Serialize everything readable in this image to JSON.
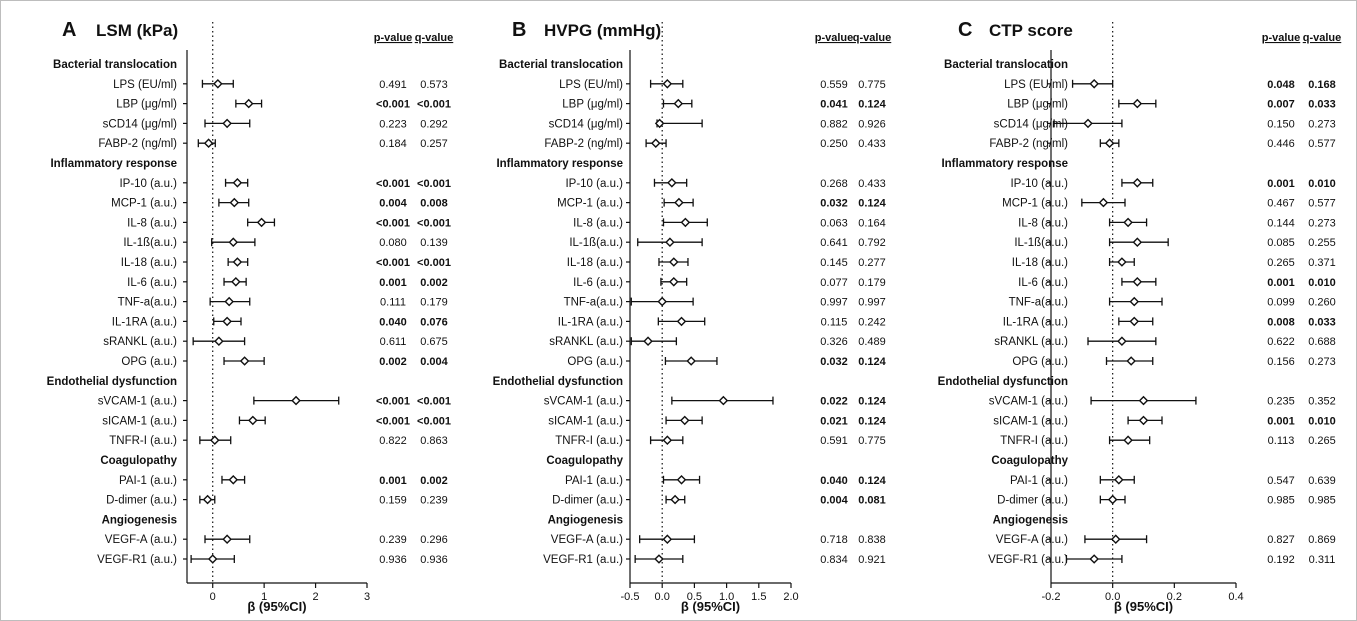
{
  "figure": {
    "rows": [
      {
        "kind": "category",
        "label": "Bacterial translocation"
      },
      {
        "kind": "marker",
        "label": "LPS (EU/ml)"
      },
      {
        "kind": "marker",
        "label": "LBP (μg/ml)"
      },
      {
        "kind": "marker",
        "label": "sCD14 (μg/ml)"
      },
      {
        "kind": "marker",
        "label": "FABP-2 (ng/ml)"
      },
      {
        "kind": "category",
        "label": "Inflammatory response"
      },
      {
        "kind": "marker",
        "label": "IP-10 (a.u.)"
      },
      {
        "kind": "marker",
        "label": "MCP-1 (a.u.)"
      },
      {
        "kind": "marker",
        "label": "IL-8 (a.u.)"
      },
      {
        "kind": "marker",
        "label": "IL-1ß(a.u.)"
      },
      {
        "kind": "marker",
        "label": "IL-18 (a.u.)"
      },
      {
        "kind": "marker",
        "label": "IL-6 (a.u.)"
      },
      {
        "kind": "marker",
        "label": "TNF-a(a.u.)"
      },
      {
        "kind": "marker",
        "label": "IL-1RA (a.u.)"
      },
      {
        "kind": "marker",
        "label": "sRANKL (a.u.)"
      },
      {
        "kind": "marker",
        "label": "OPG (a.u.)"
      },
      {
        "kind": "category",
        "label": "Endothelial dysfunction"
      },
      {
        "kind": "marker",
        "label": "sVCAM-1 (a.u.)"
      },
      {
        "kind": "marker",
        "label": "sICAM-1 (a.u.)"
      },
      {
        "kind": "marker",
        "label": "TNFR-I (a.u.)"
      },
      {
        "kind": "category",
        "label": "Coagulopathy"
      },
      {
        "kind": "marker",
        "label": "PAI-1 (a.u.)"
      },
      {
        "kind": "marker",
        "label": "D-dimer (a.u.)"
      },
      {
        "kind": "category",
        "label": "Angiogenesis"
      },
      {
        "kind": "marker",
        "label": "VEGF-A (a.u.)"
      },
      {
        "kind": "marker",
        "label": "VEGF-R1 (a.u.)"
      }
    ],
    "p_header": "p-value",
    "q_header": "q-value",
    "xlabel": "β (95%CI)"
  },
  "chart_data": [
    {
      "type": "forest",
      "letter": "A",
      "title": "LSM (kPa)",
      "xlim": [
        -0.5,
        3
      ],
      "xticks": [
        "0",
        "1",
        "2",
        "3"
      ],
      "reference_line": 0,
      "series": [
        {
          "beta": 0.1,
          "lo": -0.2,
          "hi": 0.4,
          "p": "0.491",
          "q": "0.573",
          "sig": false
        },
        {
          "beta": 0.7,
          "lo": 0.45,
          "hi": 0.95,
          "p": "<0.001",
          "q": "<0.001",
          "sig": true
        },
        {
          "beta": 0.28,
          "lo": -0.15,
          "hi": 0.72,
          "p": "0.223",
          "q": "0.292",
          "sig": false
        },
        {
          "beta": -0.08,
          "lo": -0.28,
          "hi": 0.05,
          "p": "0.184",
          "q": "0.257",
          "sig": false
        },
        {
          "beta": 0.48,
          "lo": 0.25,
          "hi": 0.68,
          "p": "<0.001",
          "q": "<0.001",
          "sig": true
        },
        {
          "beta": 0.42,
          "lo": 0.12,
          "hi": 0.7,
          "p": "0.004",
          "q": "0.008",
          "sig": true
        },
        {
          "beta": 0.95,
          "lo": 0.68,
          "hi": 1.2,
          "p": "<0.001",
          "q": "<0.001",
          "sig": true
        },
        {
          "beta": 0.4,
          "lo": -0.02,
          "hi": 0.82,
          "p": "0.080",
          "q": "0.139",
          "sig": false
        },
        {
          "beta": 0.48,
          "lo": 0.3,
          "hi": 0.68,
          "p": "<0.001",
          "q": "<0.001",
          "sig": true
        },
        {
          "beta": 0.45,
          "lo": 0.22,
          "hi": 0.65,
          "p": "0.001",
          "q": "0.002",
          "sig": true
        },
        {
          "beta": 0.32,
          "lo": -0.05,
          "hi": 0.72,
          "p": "0.111",
          "q": "0.179",
          "sig": false
        },
        {
          "beta": 0.28,
          "lo": 0.02,
          "hi": 0.55,
          "p": "0.040",
          "q": "0.076",
          "sig": true
        },
        {
          "beta": 0.12,
          "lo": -0.38,
          "hi": 0.62,
          "p": "0.611",
          "q": "0.675",
          "sig": false
        },
        {
          "beta": 0.62,
          "lo": 0.22,
          "hi": 1.0,
          "p": "0.002",
          "q": "0.004",
          "sig": true
        },
        {
          "beta": 1.62,
          "lo": 0.8,
          "hi": 2.45,
          "p": "<0.001",
          "q": "<0.001",
          "sig": true
        },
        {
          "beta": 0.78,
          "lo": 0.52,
          "hi": 1.02,
          "p": "<0.001",
          "q": "<0.001",
          "sig": true
        },
        {
          "beta": 0.04,
          "lo": -0.25,
          "hi": 0.35,
          "p": "0.822",
          "q": "0.863",
          "sig": false
        },
        {
          "beta": 0.4,
          "lo": 0.18,
          "hi": 0.62,
          "p": "0.001",
          "q": "0.002",
          "sig": true
        },
        {
          "beta": -0.1,
          "lo": -0.25,
          "hi": 0.04,
          "p": "0.159",
          "q": "0.239",
          "sig": false
        },
        {
          "beta": 0.28,
          "lo": -0.15,
          "hi": 0.72,
          "p": "0.239",
          "q": "0.296",
          "sig": false
        },
        {
          "beta": 0.0,
          "lo": -0.42,
          "hi": 0.42,
          "p": "0.936",
          "q": "0.936",
          "sig": false
        }
      ]
    },
    {
      "type": "forest",
      "letter": "B",
      "title": "HVPG (mmHg)",
      "xlim": [
        -0.5,
        2.0
      ],
      "xticks": [
        "-0.5",
        "0.0",
        "0.5",
        "1.0",
        "1.5",
        "2.0"
      ],
      "reference_line": 0,
      "series": [
        {
          "beta": 0.08,
          "lo": -0.18,
          "hi": 0.32,
          "p": "0.559",
          "q": "0.775",
          "sig": false
        },
        {
          "beta": 0.25,
          "lo": 0.02,
          "hi": 0.46,
          "p": "0.041",
          "q": "0.124",
          "sig": true
        },
        {
          "beta": -0.04,
          "lo": -0.08,
          "hi": 0.62,
          "p": "0.882",
          "q": "0.926",
          "sig": false
        },
        {
          "beta": -0.1,
          "lo": -0.25,
          "hi": 0.06,
          "p": "0.250",
          "q": "0.433",
          "sig": false
        },
        {
          "beta": 0.15,
          "lo": -0.12,
          "hi": 0.38,
          "p": "0.268",
          "q": "0.433",
          "sig": false
        },
        {
          "beta": 0.26,
          "lo": 0.03,
          "hi": 0.48,
          "p": "0.032",
          "q": "0.124",
          "sig": true
        },
        {
          "beta": 0.36,
          "lo": 0.02,
          "hi": 0.7,
          "p": "0.063",
          "q": "0.164",
          "sig": false
        },
        {
          "beta": 0.12,
          "lo": -0.38,
          "hi": 0.62,
          "p": "0.641",
          "q": "0.792",
          "sig": false
        },
        {
          "beta": 0.18,
          "lo": -0.05,
          "hi": 0.4,
          "p": "0.145",
          "q": "0.277",
          "sig": false
        },
        {
          "beta": 0.18,
          "lo": -0.02,
          "hi": 0.38,
          "p": "0.077",
          "q": "0.179",
          "sig": false
        },
        {
          "beta": 0.0,
          "lo": -0.48,
          "hi": 0.48,
          "p": "0.997",
          "q": "0.997",
          "sig": false
        },
        {
          "beta": 0.3,
          "lo": -0.06,
          "hi": 0.66,
          "p": "0.115",
          "q": "0.242",
          "sig": false
        },
        {
          "beta": -0.22,
          "lo": -0.48,
          "hi": 0.22,
          "p": "0.326",
          "q": "0.489",
          "sig": false
        },
        {
          "beta": 0.45,
          "lo": 0.05,
          "hi": 0.85,
          "p": "0.032",
          "q": "0.124",
          "sig": true
        },
        {
          "beta": 0.95,
          "lo": 0.15,
          "hi": 1.72,
          "p": "0.022",
          "q": "0.124",
          "sig": true
        },
        {
          "beta": 0.35,
          "lo": 0.06,
          "hi": 0.62,
          "p": "0.021",
          "q": "0.124",
          "sig": true
        },
        {
          "beta": 0.08,
          "lo": -0.18,
          "hi": 0.32,
          "p": "0.591",
          "q": "0.775",
          "sig": false
        },
        {
          "beta": 0.3,
          "lo": 0.02,
          "hi": 0.58,
          "p": "0.040",
          "q": "0.124",
          "sig": true
        },
        {
          "beta": 0.2,
          "lo": 0.06,
          "hi": 0.35,
          "p": "0.004",
          "q": "0.081",
          "sig": true
        },
        {
          "beta": 0.08,
          "lo": -0.35,
          "hi": 0.5,
          "p": "0.718",
          "q": "0.838",
          "sig": false
        },
        {
          "beta": -0.05,
          "lo": -0.42,
          "hi": 0.32,
          "p": "0.834",
          "q": "0.921",
          "sig": false
        }
      ]
    },
    {
      "type": "forest",
      "letter": "C",
      "title": "CTP score",
      "xlim": [
        -0.2,
        0.4
      ],
      "xticks": [
        "-0.2",
        "0.0",
        "0.2",
        "0.4"
      ],
      "reference_line": 0,
      "series": [
        {
          "beta": -0.06,
          "lo": -0.13,
          "hi": 0.0,
          "p": "0.048",
          "q": "0.168",
          "sig": true
        },
        {
          "beta": 0.08,
          "lo": 0.02,
          "hi": 0.14,
          "p": "0.007",
          "q": "0.033",
          "sig": true
        },
        {
          "beta": -0.08,
          "lo": -0.19,
          "hi": 0.03,
          "p": "0.150",
          "q": "0.273",
          "sig": false
        },
        {
          "beta": -0.01,
          "lo": -0.04,
          "hi": 0.02,
          "p": "0.446",
          "q": "0.577",
          "sig": false
        },
        {
          "beta": 0.08,
          "lo": 0.03,
          "hi": 0.13,
          "p": "0.001",
          "q": "0.010",
          "sig": true
        },
        {
          "beta": -0.03,
          "lo": -0.1,
          "hi": 0.04,
          "p": "0.467",
          "q": "0.577",
          "sig": false
        },
        {
          "beta": 0.05,
          "lo": -0.01,
          "hi": 0.11,
          "p": "0.144",
          "q": "0.273",
          "sig": false
        },
        {
          "beta": 0.08,
          "lo": -0.01,
          "hi": 0.18,
          "p": "0.085",
          "q": "0.255",
          "sig": false
        },
        {
          "beta": 0.03,
          "lo": -0.01,
          "hi": 0.07,
          "p": "0.265",
          "q": "0.371",
          "sig": false
        },
        {
          "beta": 0.08,
          "lo": 0.03,
          "hi": 0.14,
          "p": "0.001",
          "q": "0.010",
          "sig": true
        },
        {
          "beta": 0.07,
          "lo": -0.01,
          "hi": 0.16,
          "p": "0.099",
          "q": "0.260",
          "sig": false
        },
        {
          "beta": 0.07,
          "lo": 0.02,
          "hi": 0.13,
          "p": "0.008",
          "q": "0.033",
          "sig": true
        },
        {
          "beta": 0.03,
          "lo": -0.08,
          "hi": 0.14,
          "p": "0.622",
          "q": "0.688",
          "sig": false
        },
        {
          "beta": 0.06,
          "lo": -0.02,
          "hi": 0.13,
          "p": "0.156",
          "q": "0.273",
          "sig": false
        },
        {
          "beta": 0.1,
          "lo": -0.07,
          "hi": 0.27,
          "p": "0.235",
          "q": "0.352",
          "sig": false
        },
        {
          "beta": 0.1,
          "lo": 0.05,
          "hi": 0.16,
          "p": "0.001",
          "q": "0.010",
          "sig": true
        },
        {
          "beta": 0.05,
          "lo": -0.01,
          "hi": 0.12,
          "p": "0.113",
          "q": "0.265",
          "sig": false
        },
        {
          "beta": 0.02,
          "lo": -0.04,
          "hi": 0.07,
          "p": "0.547",
          "q": "0.639",
          "sig": false
        },
        {
          "beta": 0.0,
          "lo": -0.04,
          "hi": 0.04,
          "p": "0.985",
          "q": "0.985",
          "sig": false
        },
        {
          "beta": 0.01,
          "lo": -0.09,
          "hi": 0.11,
          "p": "0.827",
          "q": "0.869",
          "sig": false
        },
        {
          "beta": -0.06,
          "lo": -0.15,
          "hi": 0.03,
          "p": "0.192",
          "q": "0.311",
          "sig": false
        }
      ]
    }
  ]
}
